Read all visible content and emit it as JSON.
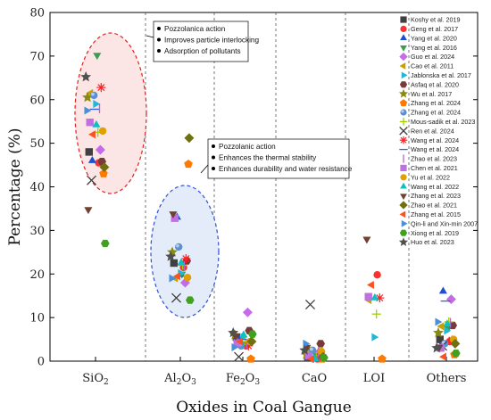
{
  "chart_data": {
    "type": "scatter",
    "xlabel": "Oxides in Coal Gangue",
    "ylabel": "Percentage (%)",
    "ylim": [
      0,
      80
    ],
    "yticks": [
      0,
      10,
      20,
      30,
      40,
      50,
      60,
      70,
      80
    ],
    "categories": [
      {
        "base": "SiO",
        "sub": "2"
      },
      {
        "base": "Al",
        "sub": "2",
        "mid": "O",
        "sub2": "3"
      },
      {
        "base": "Fe",
        "sub": "2",
        "mid": "O",
        "sub2": "3"
      },
      {
        "base": "CaO"
      },
      {
        "base": "LOI"
      },
      {
        "base": "Others"
      }
    ],
    "legend_position": "right",
    "series": [
      {
        "name": "Koshy et al. 2019",
        "marker": "square",
        "color": "#404040",
        "values": [
          48,
          22.5,
          5.5,
          1,
          null,
          5
        ]
      },
      {
        "name": "Geng et al. 2017",
        "marker": "circle",
        "color": "#ff3030",
        "values": [
          45.5,
          21.5,
          3.5,
          0.5,
          19.8,
          4.5
        ]
      },
      {
        "name": "Yang et al. 2020",
        "marker": "triangle-up",
        "color": "#1f4fd1",
        "values": [
          46,
          33,
          5,
          1,
          null,
          16
        ]
      },
      {
        "name": "Yang et al. 2016",
        "marker": "triangle-down",
        "color": "#3a9d50",
        "values": [
          70.2,
          20,
          4,
          1.5,
          null,
          7.5
        ]
      },
      {
        "name": "Guo et al. 2024",
        "marker": "diamond",
        "color": "#c36be8",
        "values": [
          48.5,
          18,
          11.2,
          2,
          null,
          14.2
        ]
      },
      {
        "name": "Cao et al. 2011",
        "marker": "triangle-left",
        "color": "#c8a000",
        "values": [
          61.5,
          19,
          4,
          2.5,
          14,
          8
        ]
      },
      {
        "name": "Jablonska et al. 2017",
        "marker": "triangle-right",
        "color": "#20b8d8",
        "values": [
          59,
          20.2,
          5.5,
          0.5,
          5.5,
          7
        ]
      },
      {
        "name": "Asfaq et al. 2020",
        "marker": "hexagon",
        "color": "#7a3a3a",
        "values": [
          45.8,
          23,
          7,
          4,
          null,
          8.2
        ]
      },
      {
        "name": "Wu et al. 2017",
        "marker": "star",
        "color": "#8a8a10",
        "values": [
          60.5,
          25,
          6,
          1.5,
          null,
          6.5
        ]
      },
      {
        "name": "Zhang et al. 2024",
        "marker": "pentagon",
        "color": "#ff7a00",
        "values": [
          43,
          45.2,
          0.5,
          0.5,
          0.5,
          1.5
        ]
      },
      {
        "name": "Zhang et al. 2024",
        "marker": "sphere",
        "color": "#5a8fd0",
        "values": [
          61,
          26.2,
          3.5,
          2.5,
          null,
          4
        ]
      },
      {
        "name": "Mous-sadik et al. 2023",
        "marker": "plus",
        "color": "#a0d000",
        "values": [
          52.5,
          22,
          4.5,
          1,
          10.8,
          9
        ]
      },
      {
        "name": "Ren et al. 2024",
        "marker": "x",
        "color": "#404040",
        "values": [
          41.5,
          14.5,
          1,
          13,
          null,
          3.5
        ]
      },
      {
        "name": "Wang et al. 2024",
        "marker": "asterisk",
        "color": "#ff2020",
        "values": [
          62.8,
          23.5,
          3.5,
          1,
          14.5,
          4.8
        ]
      },
      {
        "name": "Wang et al. 2024",
        "marker": "dash",
        "color": "#3060e0",
        "values": [
          57.8,
          19.5,
          5,
          0.5,
          null,
          13.8
        ]
      },
      {
        "name": "Zhao et al. 2023",
        "marker": "vbar",
        "color": "#c060d0",
        "values": [
          58,
          21.8,
          4,
          2,
          null,
          8.8
        ]
      },
      {
        "name": "Chen et al. 2021",
        "marker": "square",
        "color": "#c070e0",
        "values": [
          54.8,
          32.8,
          4.2,
          1.2,
          14.8,
          3
        ]
      },
      {
        "name": "Yu et al. 2022",
        "marker": "circle",
        "color": "#e0a000",
        "values": [
          52.8,
          19.2,
          4.5,
          2.2,
          null,
          5
        ]
      },
      {
        "name": "Wang et al. 2022",
        "marker": "triangle-up",
        "color": "#10c0c0",
        "values": [
          54.2,
          22.5,
          6,
          0.5,
          14.5,
          8.5
        ]
      },
      {
        "name": "Zhang et al. 2023",
        "marker": "triangle-down",
        "color": "#704030",
        "values": [
          34.8,
          33.8,
          5.8,
          3.2,
          28,
          3.2
        ]
      },
      {
        "name": "Zhao et al. 2021",
        "marker": "diamond",
        "color": "#707010",
        "values": [
          44.5,
          51.2,
          4.5,
          1,
          null,
          4
        ]
      },
      {
        "name": "Zhang et al. 2015",
        "marker": "triangle-left",
        "color": "#ff5020",
        "values": [
          52,
          19.5,
          4.5,
          0.5,
          17.5,
          1
        ]
      },
      {
        "name": "Qin-li and Xin-min 2007",
        "marker": "triangle-right",
        "color": "#4a90d9",
        "values": [
          57.5,
          19,
          3.2,
          4,
          null,
          9
        ]
      },
      {
        "name": "Xiong et al. 2019",
        "marker": "hexagon",
        "color": "#40a020",
        "values": [
          27,
          14,
          6.2,
          0.8,
          null,
          1.8
        ]
      },
      {
        "name": "Huo et al. 2023",
        "marker": "star",
        "color": "#505050",
        "values": [
          65.2,
          24,
          6.5,
          2.5,
          null,
          3
        ]
      }
    ],
    "annotations": [
      {
        "target": "SiO2",
        "items": [
          "Pozzolanica action",
          "Improves particle interlocking",
          "Adsorption of pollutants"
        ]
      },
      {
        "target": "Al2O3",
        "items": [
          "Pozzolanic action",
          "Enhances the thermal stability",
          "Enhances durability and water resistance"
        ]
      }
    ],
    "grid": false
  }
}
